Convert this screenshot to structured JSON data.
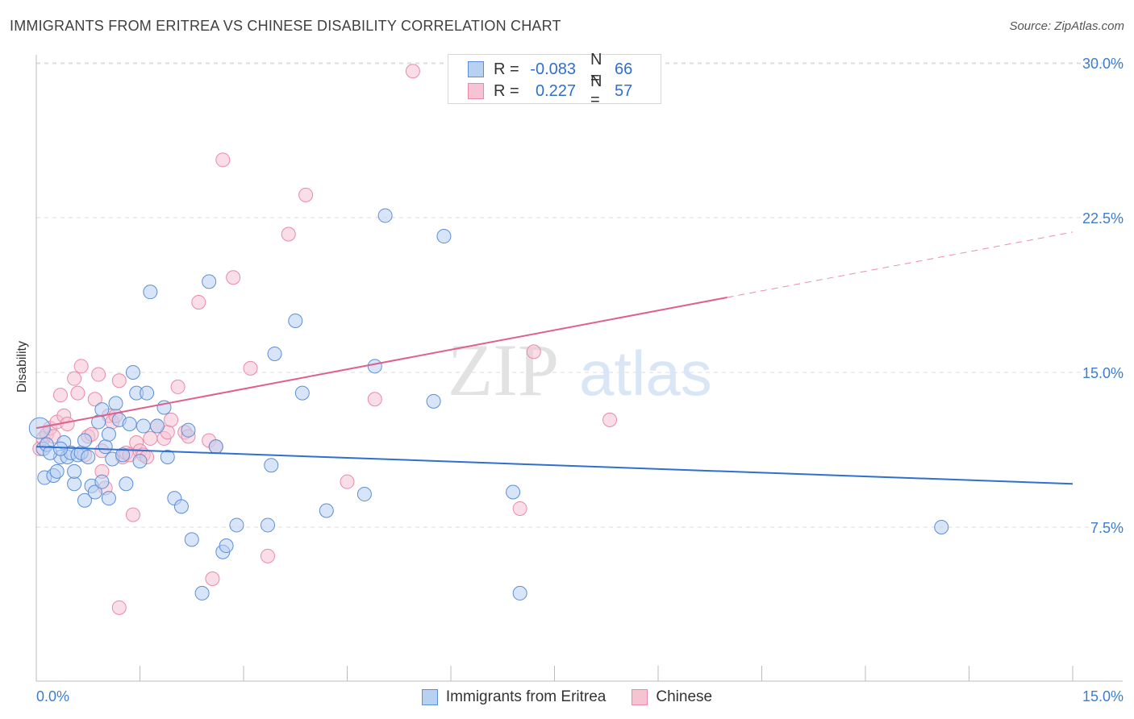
{
  "title": "IMMIGRANTS FROM ERITREA VS CHINESE DISABILITY CORRELATION CHART",
  "source": "Source: ZipAtlas.com",
  "colors": {
    "blue": "#5b8fd6",
    "blue_fill": "#b8d0f2",
    "blue_line": "#2f6fcf",
    "pink": "#e98aa8",
    "pink_fill": "#f6c3d3",
    "pink_line": "#e0608a",
    "axis_text": "#3d7dd0",
    "grid": "#dddddd"
  },
  "legend": {
    "rows": [
      {
        "r_label": "R =",
        "r_value": "-0.083",
        "n_label": "N =",
        "n_value": "66"
      },
      {
        "r_label": "R =",
        "r_value": "0.227",
        "n_label": "N =",
        "n_value": "57"
      }
    ]
  },
  "watermark": {
    "zip": "ZIP",
    "atlas": "atlas"
  },
  "chart_data": {
    "type": "scatter",
    "title": "IMMIGRANTS FROM ERITREA VS CHINESE DISABILITY CORRELATION CHART",
    "xlabel": "",
    "ylabel": "Disability",
    "xlim": [
      0,
      15
    ],
    "ylim": [
      0,
      31
    ],
    "x_tick_labels": [
      "0.0%",
      "15.0%"
    ],
    "y_ticks": [
      7.5,
      15.0,
      22.5,
      30.0
    ],
    "y_tick_labels": [
      "7.5%",
      "15.0%",
      "22.5%",
      "30.0%"
    ],
    "grid": "horizontal-dashed",
    "legend_position": "bottom-center",
    "series": [
      {
        "name": "Immigrants from Eritrea",
        "color": "blue",
        "trend": {
          "x": [
            0,
            15
          ],
          "y": [
            11.4,
            9.6
          ],
          "dashed_from": null
        },
        "points": [
          [
            0.05,
            12.3
          ],
          [
            0.1,
            11.3
          ],
          [
            0.15,
            11.5
          ],
          [
            0.12,
            9.9
          ],
          [
            0.25,
            10.0
          ],
          [
            0.3,
            10.2
          ],
          [
            0.35,
            10.9
          ],
          [
            0.4,
            11.6
          ],
          [
            0.45,
            10.9
          ],
          [
            0.5,
            11.1
          ],
          [
            0.55,
            9.6
          ],
          [
            0.6,
            11.0
          ],
          [
            0.65,
            11.1
          ],
          [
            0.7,
            11.7
          ],
          [
            0.75,
            10.9
          ],
          [
            0.8,
            9.5
          ],
          [
            0.9,
            12.6
          ],
          [
            0.95,
            13.2
          ],
          [
            1.0,
            11.4
          ],
          [
            1.05,
            12.0
          ],
          [
            1.1,
            10.8
          ],
          [
            1.15,
            13.5
          ],
          [
            1.2,
            12.7
          ],
          [
            1.25,
            11.0
          ],
          [
            1.3,
            9.6
          ],
          [
            1.35,
            12.5
          ],
          [
            1.4,
            15.0
          ],
          [
            1.45,
            14.0
          ],
          [
            1.5,
            10.7
          ],
          [
            1.55,
            12.4
          ],
          [
            1.6,
            14.0
          ],
          [
            1.65,
            18.9
          ],
          [
            1.75,
            12.4
          ],
          [
            1.85,
            13.3
          ],
          [
            1.9,
            10.9
          ],
          [
            2.0,
            8.9
          ],
          [
            2.1,
            8.5
          ],
          [
            2.2,
            12.2
          ],
          [
            2.25,
            6.9
          ],
          [
            2.4,
            4.3
          ],
          [
            2.5,
            19.4
          ],
          [
            2.6,
            11.4
          ],
          [
            2.7,
            6.3
          ],
          [
            2.75,
            6.6
          ],
          [
            2.9,
            7.6
          ],
          [
            3.35,
            7.6
          ],
          [
            3.4,
            10.5
          ],
          [
            3.45,
            15.9
          ],
          [
            3.75,
            17.5
          ],
          [
            3.85,
            14.0
          ],
          [
            4.2,
            8.3
          ],
          [
            4.75,
            9.1
          ],
          [
            4.9,
            15.3
          ],
          [
            5.05,
            22.6
          ],
          [
            5.75,
            13.6
          ],
          [
            5.9,
            21.6
          ],
          [
            6.9,
            9.2
          ],
          [
            7.0,
            4.3
          ],
          [
            13.1,
            7.5
          ],
          [
            0.2,
            11.1
          ],
          [
            0.55,
            10.2
          ],
          [
            0.7,
            8.8
          ],
          [
            0.85,
            9.2
          ],
          [
            1.05,
            8.9
          ],
          [
            0.35,
            11.3
          ],
          [
            0.95,
            9.7
          ]
        ]
      },
      {
        "name": "Chinese",
        "color": "pink",
        "trend": {
          "x": [
            0,
            15
          ],
          "y": [
            12.3,
            21.8
          ],
          "dashed_from": 10.0
        },
        "points": [
          [
            0.05,
            11.3
          ],
          [
            0.1,
            11.8
          ],
          [
            0.15,
            12.0
          ],
          [
            0.2,
            12.3
          ],
          [
            0.25,
            11.9
          ],
          [
            0.3,
            12.6
          ],
          [
            0.35,
            13.9
          ],
          [
            0.4,
            12.9
          ],
          [
            0.45,
            12.5
          ],
          [
            0.55,
            14.7
          ],
          [
            0.6,
            14.0
          ],
          [
            0.65,
            15.3
          ],
          [
            0.7,
            11.0
          ],
          [
            0.75,
            11.9
          ],
          [
            0.8,
            12.0
          ],
          [
            0.85,
            13.7
          ],
          [
            0.9,
            14.9
          ],
          [
            0.95,
            11.2
          ],
          [
            1.0,
            9.4
          ],
          [
            1.05,
            12.9
          ],
          [
            1.1,
            12.6
          ],
          [
            1.15,
            12.9
          ],
          [
            1.2,
            14.6
          ],
          [
            1.25,
            10.9
          ],
          [
            1.3,
            11.1
          ],
          [
            1.35,
            11.0
          ],
          [
            1.4,
            8.1
          ],
          [
            1.45,
            11.6
          ],
          [
            1.5,
            11.2
          ],
          [
            1.55,
            11.0
          ],
          [
            1.6,
            10.9
          ],
          [
            1.65,
            11.8
          ],
          [
            1.75,
            12.4
          ],
          [
            1.85,
            11.8
          ],
          [
            1.9,
            12.1
          ],
          [
            1.95,
            12.7
          ],
          [
            2.05,
            14.3
          ],
          [
            2.15,
            12.1
          ],
          [
            2.2,
            11.9
          ],
          [
            2.35,
            18.4
          ],
          [
            2.5,
            11.7
          ],
          [
            2.6,
            11.4
          ],
          [
            2.7,
            25.3
          ],
          [
            2.85,
            19.6
          ],
          [
            3.1,
            15.2
          ],
          [
            3.35,
            6.1
          ],
          [
            3.65,
            21.7
          ],
          [
            3.9,
            23.6
          ],
          [
            4.5,
            9.7
          ],
          [
            4.9,
            13.7
          ],
          [
            5.45,
            29.6
          ],
          [
            7.0,
            8.4
          ],
          [
            7.2,
            16.0
          ],
          [
            8.3,
            12.7
          ],
          [
            1.2,
            3.6
          ],
          [
            2.55,
            5.0
          ],
          [
            0.95,
            10.2
          ]
        ]
      }
    ]
  }
}
